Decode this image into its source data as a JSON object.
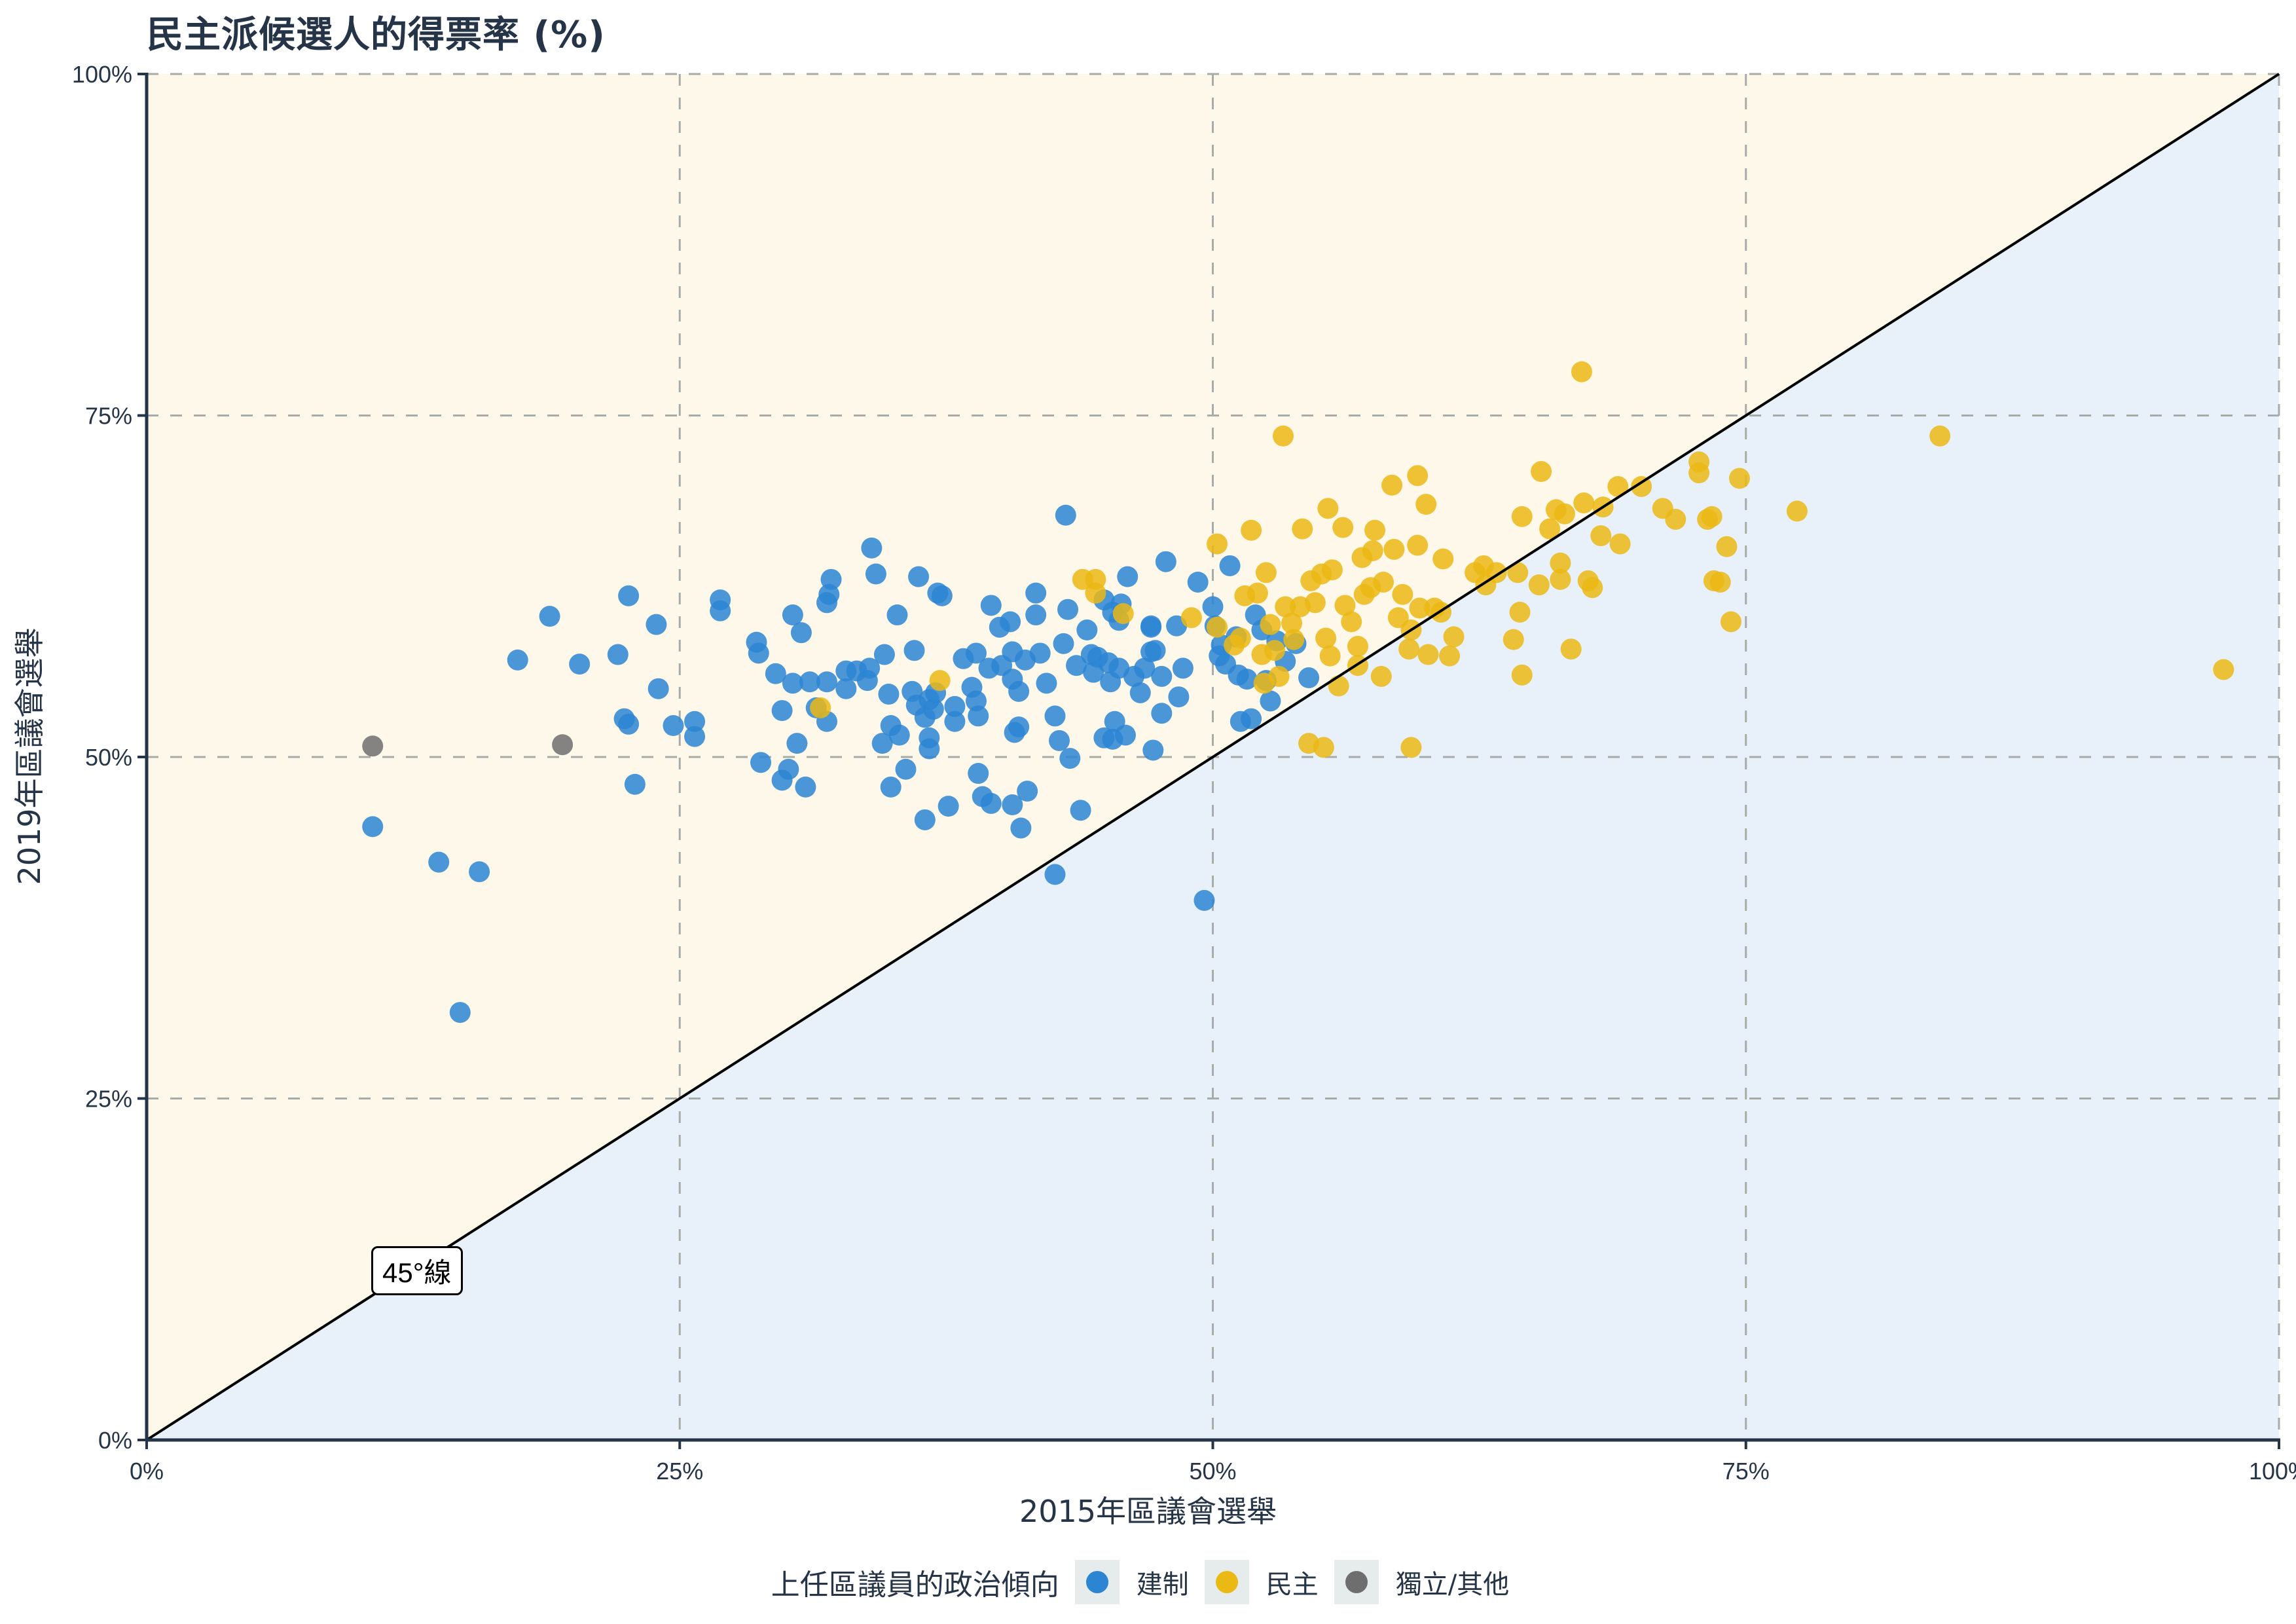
{
  "title": "民主派候選人的得票率 (%)",
  "axes": {
    "x_title": "2015年區議會選舉",
    "y_title": "2019年區議會選舉",
    "x_ticks": [
      "0%",
      "25%",
      "50%",
      "75%",
      "100%"
    ],
    "y_ticks": [
      "0%",
      "25%",
      "50%",
      "75%",
      "100%"
    ]
  },
  "annotation": {
    "label": "45°線"
  },
  "legend": {
    "title": "上任區議員的政治傾向",
    "items": [
      {
        "label": "建制",
        "color": "#2b85d3"
      },
      {
        "label": "民主",
        "color": "#ebb914"
      },
      {
        "label": "獨立/其他",
        "color": "#6e6e6e"
      }
    ]
  },
  "colors": {
    "upper_region": "#fdf8e9",
    "lower_region": "#e8f0fa",
    "grid": "#b8b8a8",
    "axis": "#253547",
    "diagonal": "#000000"
  },
  "chart_data": {
    "type": "scatter",
    "title": "民主派候選人的得票率 (%)",
    "xlabel": "2015年區議會選舉",
    "ylabel": "2019年區議會選舉",
    "xlim": [
      0,
      100
    ],
    "ylim": [
      0,
      100
    ],
    "x_ticks": [
      0,
      25,
      50,
      75,
      100
    ],
    "y_ticks": [
      0,
      25,
      50,
      75,
      100
    ],
    "grid": true,
    "legend_position": "bottom",
    "legend_title": "上任區議員的政治傾向",
    "reference_line": {
      "label": "45°線",
      "from": [
        0,
        0
      ],
      "to": [
        100,
        100
      ]
    },
    "series": [
      {
        "name": "建制",
        "color": "#2b85d3",
        "points": [
          [
            10.6,
            44.9
          ],
          [
            13.7,
            42.3
          ],
          [
            15.6,
            41.6
          ],
          [
            14.7,
            31.3
          ],
          [
            42.6,
            41.4
          ],
          [
            49.6,
            39.5
          ],
          [
            17.4,
            57.1
          ],
          [
            18.9,
            60.3
          ],
          [
            20.3,
            56.8
          ],
          [
            22.1,
            57.5
          ],
          [
            22.6,
            61.8
          ],
          [
            22.4,
            52.8
          ],
          [
            22.6,
            52.4
          ],
          [
            22.9,
            48.0
          ],
          [
            23.9,
            59.7
          ],
          [
            24.0,
            55.0
          ],
          [
            24.7,
            52.3
          ],
          [
            25.7,
            51.5
          ],
          [
            25.7,
            52.6
          ],
          [
            26.9,
            61.5
          ],
          [
            26.9,
            60.7
          ],
          [
            28.6,
            58.4
          ],
          [
            28.7,
            57.6
          ],
          [
            28.8,
            49.6
          ],
          [
            29.5,
            56.1
          ],
          [
            29.8,
            53.4
          ],
          [
            29.8,
            48.3
          ],
          [
            30.1,
            49.1
          ],
          [
            30.3,
            55.4
          ],
          [
            30.3,
            60.4
          ],
          [
            30.5,
            51.0
          ],
          [
            30.7,
            59.1
          ],
          [
            30.9,
            47.8
          ],
          [
            31.1,
            55.5
          ],
          [
            31.4,
            53.6
          ],
          [
            31.9,
            55.5
          ],
          [
            31.9,
            61.3
          ],
          [
            32.0,
            61.9
          ],
          [
            32.1,
            63.0
          ],
          [
            31.9,
            52.6
          ],
          [
            32.8,
            55.0
          ],
          [
            32.8,
            56.3
          ],
          [
            33.3,
            56.3
          ],
          [
            33.8,
            55.6
          ],
          [
            33.9,
            56.5
          ],
          [
            34.0,
            65.3
          ],
          [
            34.2,
            63.4
          ],
          [
            34.5,
            51.0
          ],
          [
            34.6,
            57.5
          ],
          [
            34.8,
            54.6
          ],
          [
            34.9,
            47.8
          ],
          [
            34.9,
            52.3
          ],
          [
            35.3,
            51.6
          ],
          [
            35.2,
            60.4
          ],
          [
            35.6,
            49.1
          ],
          [
            35.9,
            54.8
          ],
          [
            36.0,
            57.8
          ],
          [
            36.2,
            63.2
          ],
          [
            36.1,
            53.8
          ],
          [
            36.5,
            52.9
          ],
          [
            36.7,
            54.2
          ],
          [
            36.9,
            53.5
          ],
          [
            36.7,
            51.4
          ],
          [
            36.7,
            50.6
          ],
          [
            36.5,
            45.4
          ],
          [
            37.0,
            54.7
          ],
          [
            37.1,
            62.0
          ],
          [
            37.3,
            61.8
          ],
          [
            37.6,
            46.4
          ],
          [
            37.9,
            53.7
          ],
          [
            37.9,
            52.6
          ],
          [
            38.3,
            57.2
          ],
          [
            38.7,
            55.1
          ],
          [
            38.9,
            54.1
          ],
          [
            38.9,
            57.6
          ],
          [
            39.0,
            48.8
          ],
          [
            39.0,
            53.0
          ],
          [
            39.2,
            47.1
          ],
          [
            39.5,
            56.5
          ],
          [
            39.6,
            61.1
          ],
          [
            39.6,
            46.6
          ],
          [
            40.0,
            59.5
          ],
          [
            40.1,
            56.7
          ],
          [
            40.5,
            59.9
          ],
          [
            40.6,
            55.7
          ],
          [
            40.6,
            57.7
          ],
          [
            40.6,
            46.5
          ],
          [
            40.7,
            51.8
          ],
          [
            40.9,
            52.2
          ],
          [
            40.9,
            54.8
          ],
          [
            41.0,
            44.8
          ],
          [
            41.2,
            57.1
          ],
          [
            41.3,
            47.5
          ],
          [
            41.7,
            62.0
          ],
          [
            41.7,
            60.4
          ],
          [
            41.9,
            57.6
          ],
          [
            42.2,
            55.4
          ],
          [
            42.6,
            53.0
          ],
          [
            42.8,
            51.2
          ],
          [
            43.0,
            58.3
          ],
          [
            43.1,
            67.7
          ],
          [
            43.2,
            60.8
          ],
          [
            43.3,
            49.9
          ],
          [
            43.6,
            56.7
          ],
          [
            43.8,
            46.1
          ],
          [
            44.1,
            59.3
          ],
          [
            44.3,
            57.5
          ],
          [
            44.4,
            56.2
          ],
          [
            44.6,
            57.3
          ],
          [
            44.9,
            61.5
          ],
          [
            44.9,
            51.4
          ],
          [
            45.1,
            56.9
          ],
          [
            45.2,
            55.5
          ],
          [
            45.3,
            60.6
          ],
          [
            45.3,
            51.3
          ],
          [
            45.4,
            52.6
          ],
          [
            45.7,
            61.2
          ],
          [
            45.6,
            60.0
          ],
          [
            45.6,
            56.5
          ],
          [
            45.9,
            51.6
          ],
          [
            46.0,
            63.2
          ],
          [
            46.3,
            55.9
          ],
          [
            46.6,
            54.7
          ],
          [
            46.8,
            56.5
          ],
          [
            47.1,
            59.6
          ],
          [
            47.1,
            59.5
          ],
          [
            47.1,
            57.7
          ],
          [
            47.2,
            50.5
          ],
          [
            47.3,
            57.8
          ],
          [
            47.6,
            55.9
          ],
          [
            47.6,
            53.2
          ],
          [
            47.8,
            64.3
          ],
          [
            48.3,
            59.6
          ],
          [
            48.4,
            54.4
          ],
          [
            48.6,
            56.5
          ],
          [
            49.3,
            62.8
          ],
          [
            50.0,
            61.0
          ],
          [
            50.1,
            59.6
          ],
          [
            50.3,
            57.4
          ],
          [
            50.4,
            58.2
          ],
          [
            50.6,
            56.8
          ],
          [
            50.8,
            64.0
          ],
          [
            51.1,
            58.8
          ],
          [
            51.2,
            56.0
          ],
          [
            51.3,
            52.6
          ],
          [
            51.6,
            55.7
          ],
          [
            51.8,
            52.8
          ],
          [
            52.0,
            60.4
          ],
          [
            52.3,
            59.3
          ],
          [
            52.7,
            54.1
          ],
          [
            53.9,
            58.3
          ],
          [
            54.5,
            55.8
          ],
          [
            52.5,
            55.6
          ],
          [
            53.4,
            57.0
          ],
          [
            53.0,
            58.5
          ]
        ]
      },
      {
        "name": "民主",
        "color": "#ebb914",
        "points": [
          [
            31.6,
            53.6
          ],
          [
            37.2,
            55.6
          ],
          [
            43.9,
            63.0
          ],
          [
            44.5,
            63.0
          ],
          [
            44.5,
            62.0
          ],
          [
            45.8,
            60.5
          ],
          [
            49.0,
            60.2
          ],
          [
            50.2,
            65.6
          ],
          [
            50.2,
            59.5
          ],
          [
            51.0,
            58.2
          ],
          [
            51.3,
            58.7
          ],
          [
            51.5,
            61.8
          ],
          [
            51.8,
            66.6
          ],
          [
            52.1,
            62.0
          ],
          [
            52.3,
            57.5
          ],
          [
            52.4,
            55.4
          ],
          [
            52.5,
            63.5
          ],
          [
            52.7,
            59.7
          ],
          [
            52.9,
            57.8
          ],
          [
            53.1,
            55.9
          ],
          [
            53.3,
            73.5
          ],
          [
            53.4,
            61.0
          ],
          [
            53.7,
            59.8
          ],
          [
            53.8,
            58.6
          ],
          [
            54.1,
            61.0
          ],
          [
            54.2,
            66.7
          ],
          [
            54.5,
            51.0
          ],
          [
            54.6,
            62.9
          ],
          [
            54.8,
            61.3
          ],
          [
            55.1,
            63.4
          ],
          [
            55.2,
            50.7
          ],
          [
            55.3,
            58.7
          ],
          [
            55.4,
            68.2
          ],
          [
            55.5,
            57.4
          ],
          [
            55.6,
            63.7
          ],
          [
            55.9,
            55.2
          ],
          [
            56.1,
            66.8
          ],
          [
            56.2,
            61.1
          ],
          [
            56.5,
            59.9
          ],
          [
            56.8,
            58.1
          ],
          [
            56.8,
            56.7
          ],
          [
            57.0,
            64.6
          ],
          [
            57.1,
            61.9
          ],
          [
            57.4,
            62.4
          ],
          [
            57.5,
            65.1
          ],
          [
            57.6,
            66.6
          ],
          [
            57.9,
            55.9
          ],
          [
            58.0,
            62.8
          ],
          [
            58.4,
            69.9
          ],
          [
            58.5,
            65.2
          ],
          [
            58.7,
            60.2
          ],
          [
            58.9,
            61.9
          ],
          [
            59.2,
            57.9
          ],
          [
            59.3,
            59.3
          ],
          [
            59.3,
            50.7
          ],
          [
            59.6,
            70.6
          ],
          [
            59.6,
            65.5
          ],
          [
            59.7,
            60.9
          ],
          [
            60.0,
            68.5
          ],
          [
            60.1,
            57.5
          ],
          [
            60.4,
            60.9
          ],
          [
            60.7,
            60.6
          ],
          [
            60.8,
            64.5
          ],
          [
            61.1,
            57.4
          ],
          [
            61.3,
            58.8
          ],
          [
            62.3,
            63.5
          ],
          [
            62.7,
            64.0
          ],
          [
            62.8,
            62.6
          ],
          [
            63.3,
            63.5
          ],
          [
            64.5,
            67.6
          ],
          [
            64.3,
            63.5
          ],
          [
            64.4,
            60.6
          ],
          [
            64.1,
            58.6
          ],
          [
            64.5,
            56.0
          ],
          [
            65.3,
            62.6
          ],
          [
            65.4,
            70.9
          ],
          [
            65.8,
            66.7
          ],
          [
            66.1,
            68.1
          ],
          [
            66.3,
            63.0
          ],
          [
            66.3,
            64.2
          ],
          [
            66.8,
            57.9
          ],
          [
            66.5,
            67.8
          ],
          [
            67.3,
            78.2
          ],
          [
            67.4,
            68.6
          ],
          [
            67.6,
            62.9
          ],
          [
            67.8,
            62.4
          ],
          [
            68.2,
            66.2
          ],
          [
            68.3,
            68.3
          ],
          [
            69.0,
            69.8
          ],
          [
            69.1,
            65.6
          ],
          [
            70.1,
            69.8
          ],
          [
            71.1,
            68.2
          ],
          [
            71.7,
            67.4
          ],
          [
            72.8,
            71.6
          ],
          [
            72.8,
            70.8
          ],
          [
            73.2,
            67.4
          ],
          [
            73.4,
            67.6
          ],
          [
            73.5,
            62.9
          ],
          [
            73.8,
            62.8
          ],
          [
            74.1,
            65.4
          ],
          [
            74.3,
            59.9
          ],
          [
            74.7,
            70.4
          ],
          [
            77.4,
            68.0
          ],
          [
            84.1,
            73.5
          ],
          [
            97.4,
            56.4
          ]
        ]
      },
      {
        "name": "獨立/其他",
        "color": "#6e6e6e",
        "points": [
          [
            10.6,
            50.8
          ],
          [
            19.5,
            50.9
          ]
        ]
      }
    ]
  }
}
